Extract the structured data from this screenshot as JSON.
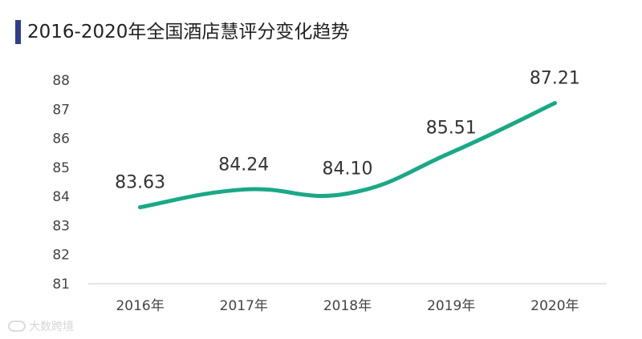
{
  "chart_data": {
    "type": "line",
    "title": "2016-2020年全国酒店慧评分变化趋势",
    "categories": [
      "2016年",
      "2017年",
      "2018年",
      "2019年",
      "2020年"
    ],
    "series": [
      {
        "values": [
          83.63,
          84.24,
          84.1,
          85.51,
          87.21
        ]
      }
    ],
    "data_labels": [
      "83.63",
      "84.24",
      "84.10",
      "85.51",
      "87.21"
    ],
    "y_ticks": [
      "81",
      "82",
      "83",
      "84",
      "85",
      "86",
      "87",
      "88"
    ],
    "ylim": [
      81,
      88
    ],
    "grid": false,
    "smooth": true,
    "line_color": "#1aa886",
    "accent_color": "#2e3d8f"
  },
  "watermark": {
    "text": "大数跨境",
    "icon": "brand-logo-icon"
  }
}
